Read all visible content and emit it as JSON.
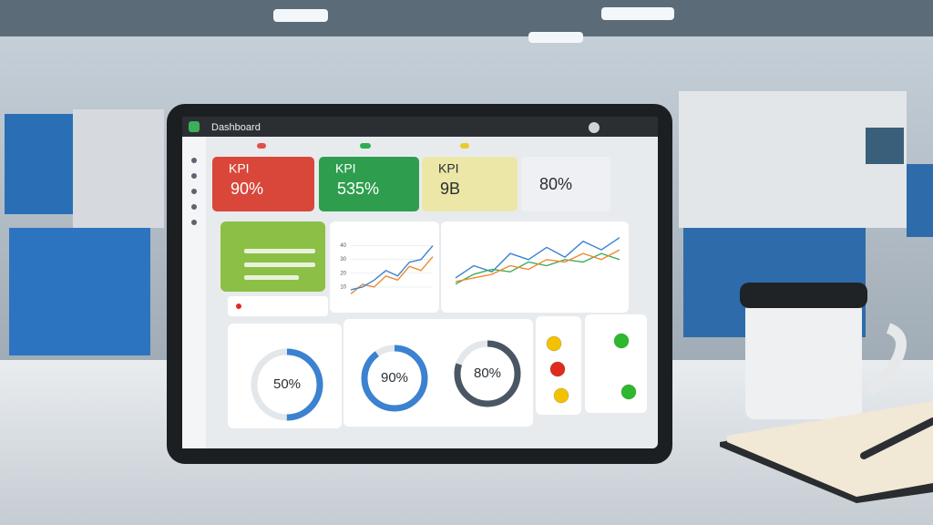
{
  "header": {
    "title": "Dashboard"
  },
  "kpis": [
    {
      "label": "KPI",
      "value": "90%",
      "color": "#d9473b"
    },
    {
      "label": "KPI",
      "value": "535%",
      "color": "#2e9e4e"
    },
    {
      "label": "KPI",
      "value": "9B",
      "color": "#ece7a6"
    },
    {
      "value": "80%",
      "color": "#eef0f3"
    }
  ],
  "charts": [
    {
      "ylim": [
        0,
        45
      ],
      "yticks": [
        10,
        20,
        30,
        40
      ],
      "series": [
        {
          "color": "#f08a30",
          "values": [
            5,
            12,
            10,
            18,
            15,
            25,
            22,
            32
          ]
        },
        {
          "color": "#3b82d0",
          "values": [
            8,
            10,
            15,
            22,
            18,
            28,
            30,
            40
          ]
        }
      ]
    },
    {
      "ylim": [
        0,
        50
      ],
      "series": [
        {
          "color": "#3b82d0",
          "values": [
            15,
            25,
            20,
            35,
            30,
            40,
            32,
            45,
            38,
            48
          ]
        },
        {
          "color": "#3fae5a",
          "values": [
            10,
            18,
            22,
            20,
            28,
            25,
            30,
            28,
            35,
            30
          ]
        },
        {
          "color": "#f08a30",
          "values": [
            12,
            15,
            18,
            25,
            22,
            30,
            28,
            35,
            30,
            38
          ]
        }
      ]
    }
  ],
  "gauges": [
    {
      "value": 50,
      "label": "50%",
      "color": "#3b82d0"
    },
    {
      "value": 90,
      "label": "90%",
      "color": "#3b82d0"
    },
    {
      "value": 80,
      "label": "80%",
      "color": "#4a5663"
    }
  ],
  "status_lights": [
    [
      "#f2c200",
      "#e02a20",
      "#f2c200"
    ],
    [
      "#2db82d",
      "#2db82d"
    ]
  ]
}
